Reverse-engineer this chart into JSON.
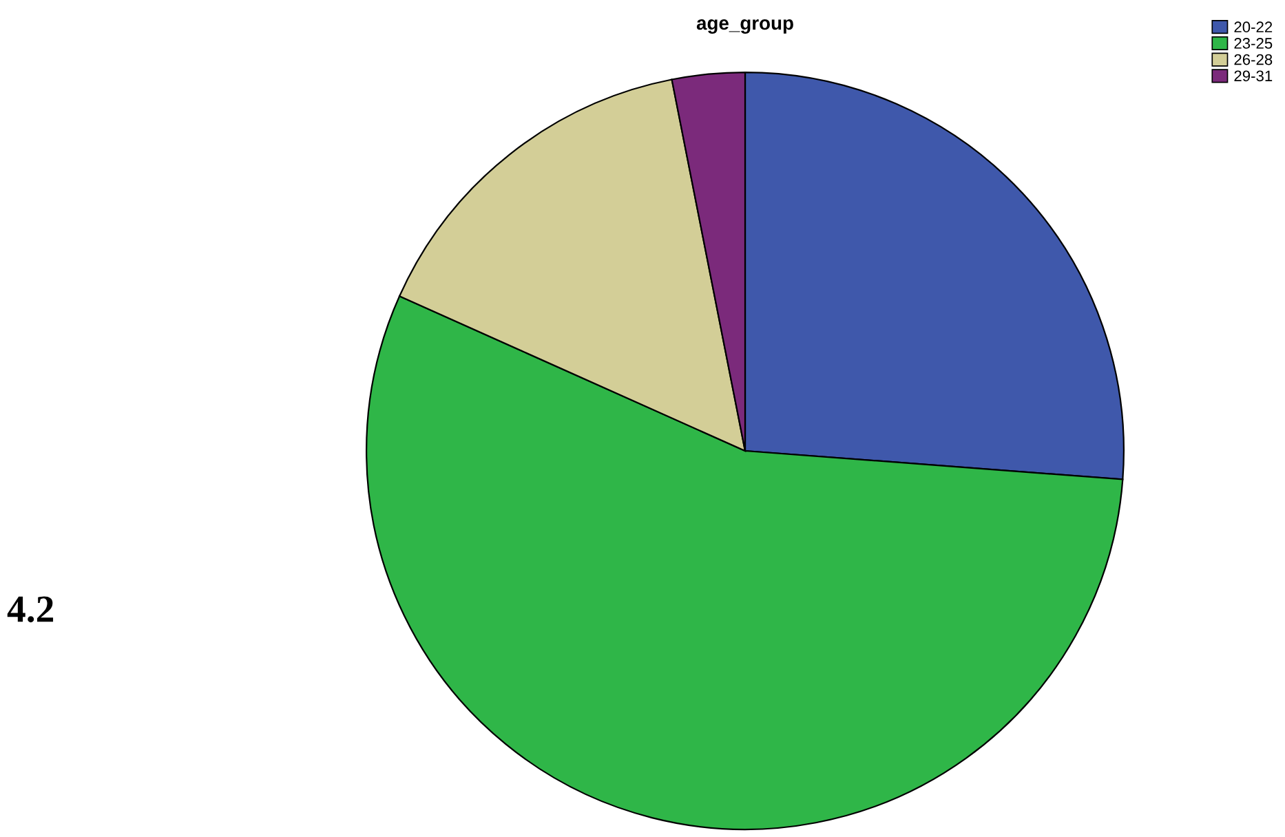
{
  "chart_data": {
    "type": "pie",
    "title": "age_group",
    "categories": [
      "20-22",
      "23-25",
      "26-28",
      "29-31"
    ],
    "values": [
      26.2,
      55.5,
      15.2,
      3.1
    ],
    "colors": [
      "#3f58ab",
      "#2fb648",
      "#d3ce97",
      "#7b2a7b"
    ],
    "legend": "top right",
    "annotations": [
      "4.2"
    ]
  }
}
